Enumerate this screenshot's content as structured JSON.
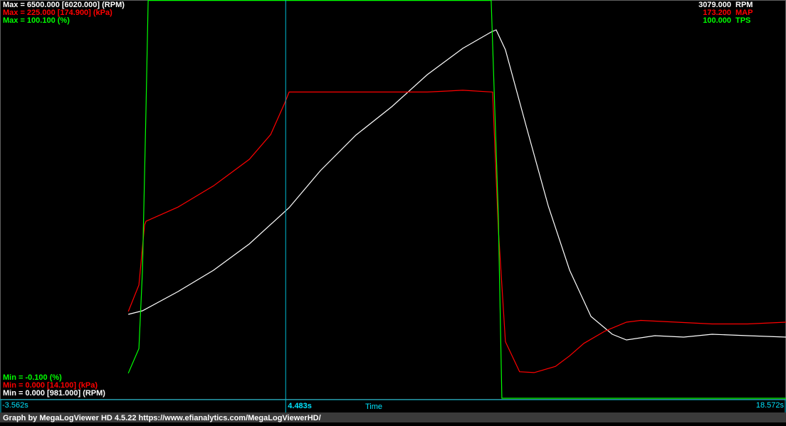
{
  "chart_data": {
    "type": "line",
    "x_label": "Time",
    "xlim": [
      -3.562,
      18.572
    ],
    "xticks": [
      {
        "value": -3.562,
        "label": "-3.562s"
      },
      {
        "value": 18.572,
        "label": "18.572s"
      }
    ],
    "cursor": {
      "value": 4.483,
      "label": "4.483s"
    },
    "series": [
      {
        "name": "RPM",
        "color": "#ffffff",
        "ylim": [
          0,
          6500
        ],
        "max_label": "Max = 6500.000 [6020.000] (RPM)",
        "min_label": "Min = 0.000 [981.000] (RPM)",
        "readout": "3079.000",
        "x": [
          0.05,
          0.45,
          1.45,
          2.45,
          3.46,
          4.58,
          5.46,
          6.46,
          7.47,
          8.47,
          9.47,
          10.27,
          10.41,
          10.67,
          11.27,
          11.88,
          12.48,
          13.08,
          13.68,
          14.08,
          14.88,
          15.69,
          16.49,
          17.49,
          18.572
        ],
        "values": [
          1370,
          1428,
          1741,
          2089,
          2519,
          3111,
          3714,
          4295,
          4759,
          5281,
          5711,
          5978,
          6012,
          5687,
          4411,
          3134,
          2089,
          1335,
          1045,
          952,
          1021,
          998,
          1045,
          1021,
          998
        ]
      },
      {
        "name": "MAP",
        "color": "#ff0000",
        "ylim": [
          0,
          225
        ],
        "max_label": "Max = 225.000 [174.900] (kPa)",
        "min_label": "Min = 0.000 [14.100] (kPa)",
        "readout": "173.200",
        "x": [
          0.05,
          0.35,
          0.51,
          0.55,
          1.45,
          2.45,
          3.46,
          4.06,
          4.46,
          4.58,
          5.46,
          6.46,
          7.47,
          8.47,
          9.47,
          10.31,
          10.47,
          10.67,
          11.07,
          11.48,
          12.08,
          12.48,
          12.88,
          13.48,
          14.08,
          14.48,
          15.49,
          16.49,
          17.49,
          18.572
        ],
        "values": [
          49,
          64,
          98,
          100,
          108,
          120,
          135,
          149,
          167,
          173,
          173,
          173,
          173,
          173,
          174,
          173,
          96,
          32,
          15,
          14.5,
          18,
          24,
          31,
          38,
          43,
          44,
          43,
          42,
          42,
          43
        ]
      },
      {
        "name": "TPS",
        "color": "#00ff00",
        "ylim": [
          -0.1,
          100.1
        ],
        "max_label": "Max = 100.100 (%)",
        "min_label": "Min = -0.100 (%)",
        "readout": "100.000",
        "x": [
          0.05,
          0.35,
          0.45,
          0.55,
          0.61,
          10.27,
          10.47,
          10.57,
          18.572
        ],
        "values": [
          6.2,
          12.4,
          32,
          73,
          100,
          100,
          46,
          -0.1,
          -0.1
        ]
      }
    ],
    "footer": "Graph by MegaLogViewer HD 4.5.22 https://www.efianalytics.com/MegaLogViewerHD/"
  }
}
